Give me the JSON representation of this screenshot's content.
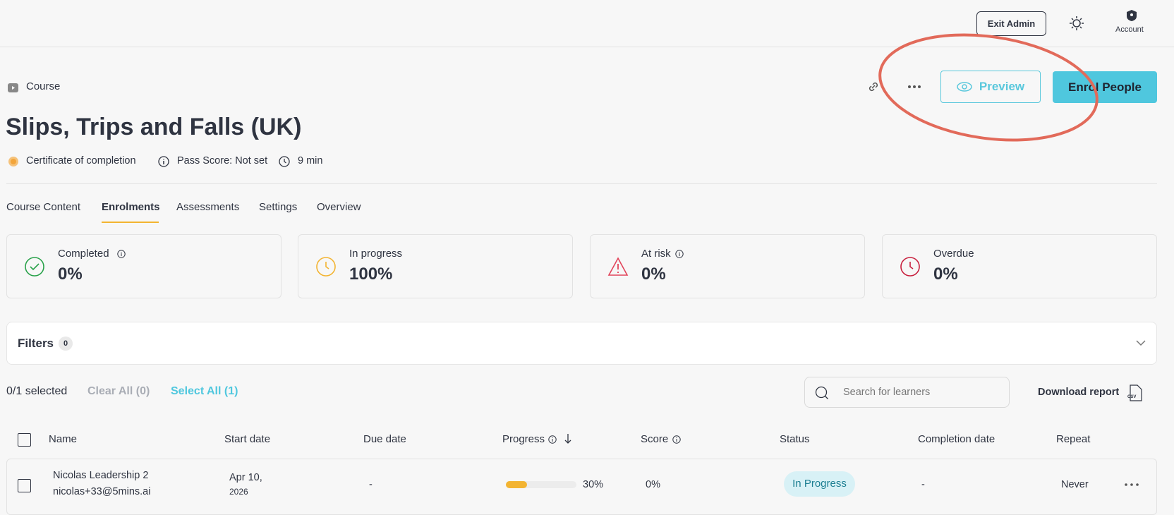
{
  "topbar": {
    "exit_admin": "Exit Admin",
    "account": "Account"
  },
  "header": {
    "kind": "Course",
    "title": "Slips, Trips and Falls (UK)",
    "certificate": "Certificate of completion",
    "pass_score": "Pass Score: Not set",
    "duration": "9 min",
    "preview": "Preview",
    "enrol": "Enrol People"
  },
  "tabs": [
    "Course Content",
    "Enrolments",
    "Assessments",
    "Settings",
    "Overview"
  ],
  "stats": [
    {
      "label": "Completed",
      "value": "0%"
    },
    {
      "label": "In progress",
      "value": "100%"
    },
    {
      "label": "At risk",
      "value": "0%"
    },
    {
      "label": "Overdue",
      "value": "0%"
    }
  ],
  "filters": {
    "title": "Filters",
    "count": "0"
  },
  "selection": {
    "selected": "0/1 selected",
    "clear_all": "Clear All (0)",
    "select_all": "Select All (1)",
    "search_placeholder": "Search for learners",
    "download": "Download report",
    "csv": "CSV"
  },
  "table": {
    "columns": [
      "Name",
      "Start date",
      "Due date",
      "Progress",
      "Score",
      "Status",
      "Completion date",
      "Repeat"
    ],
    "rows": [
      {
        "name": "Nicolas Leadership 2",
        "email": "nicolas+33@5mins.ai",
        "start_date": "Apr 10,",
        "start_year": "2026",
        "due_date": "-",
        "progress": 30,
        "progress_label": "30%",
        "score": "0%",
        "status": "In Progress",
        "completion_date": "-",
        "repeat": "Never"
      }
    ]
  }
}
